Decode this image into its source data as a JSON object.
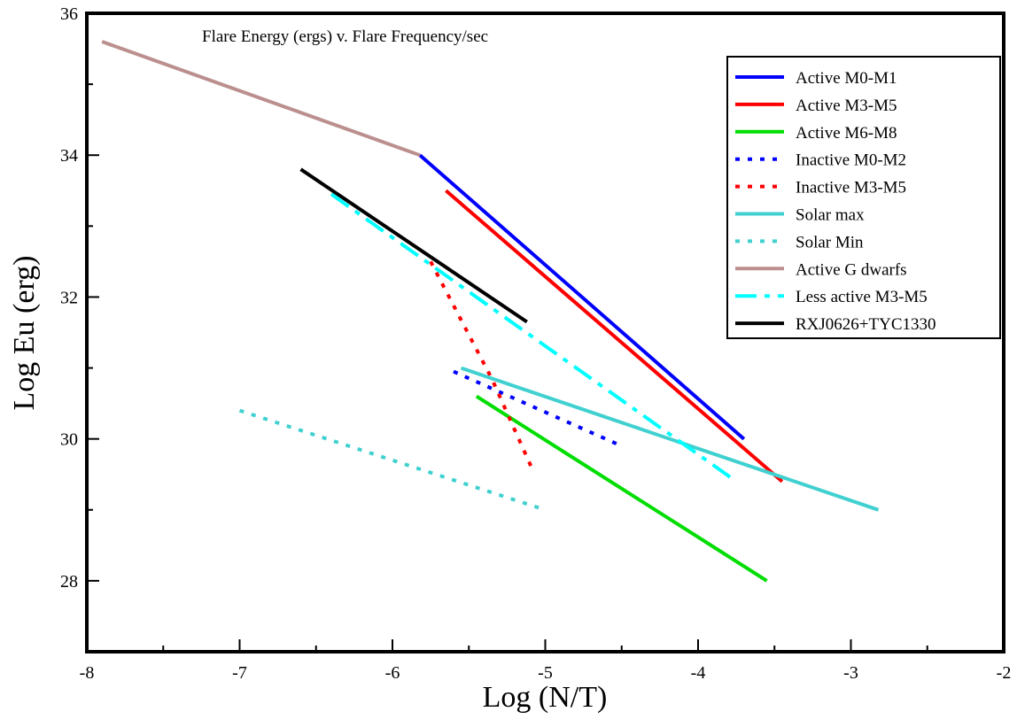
{
  "chart_data": {
    "type": "line",
    "title": "Flare Energy (ergs) v. Flare Frequency/sec",
    "xlabel": "Log (N/T)",
    "ylabel": "Log Eu (erg)",
    "xlim": [
      -8,
      -2
    ],
    "ylim": [
      27,
      36
    ],
    "xticks": [
      -8,
      -7,
      -6,
      -5,
      -4,
      -3,
      -2
    ],
    "yticks": [
      28,
      30,
      32,
      34,
      36
    ],
    "xtick_labels": [
      "-8",
      "-7",
      "-6",
      "-5",
      "-4",
      "-3",
      "-2"
    ],
    "ytick_labels": [
      "28",
      "30",
      "32",
      "34",
      "36"
    ],
    "grid": false,
    "legend_position": "top-right",
    "series": [
      {
        "name": "Active M0-M1",
        "color": "#0000ff",
        "dash": "solid",
        "x": [
          -5.82,
          -3.7
        ],
        "y": [
          34.0,
          30.0
        ]
      },
      {
        "name": "Active M3-M5",
        "color": "#ff0000",
        "dash": "solid",
        "x": [
          -5.65,
          -3.45
        ],
        "y": [
          33.5,
          29.4
        ]
      },
      {
        "name": "Active M6-M8",
        "color": "#00dd00",
        "dash": "solid",
        "x": [
          -5.45,
          -3.55
        ],
        "y": [
          30.6,
          28.0
        ]
      },
      {
        "name": "Inactive M0-M2",
        "color": "#0000ff",
        "dash": "dot",
        "x": [
          -5.6,
          -4.5
        ],
        "y": [
          30.95,
          29.9
        ]
      },
      {
        "name": "Inactive M3-M5",
        "color": "#ff0000",
        "dash": "dot",
        "x": [
          -5.75,
          -5.35,
          -5.08
        ],
        "y": [
          32.5,
          30.85,
          29.55
        ]
      },
      {
        "name": "Solar max",
        "color": "#40d0d0",
        "dash": "solid",
        "x": [
          -5.55,
          -2.82
        ],
        "y": [
          31.0,
          29.0
        ]
      },
      {
        "name": "Solar Min",
        "color": "#40d0d0",
        "dash": "dot",
        "x": [
          -7.0,
          -5.0
        ],
        "y": [
          30.4,
          29.0
        ]
      },
      {
        "name": "Active G dwarfs",
        "color": "#bc8f8f",
        "dash": "solid",
        "x": [
          -7.9,
          -5.82
        ],
        "y": [
          35.6,
          34.0
        ]
      },
      {
        "name": "Less active M3-M5",
        "color": "#00ffff",
        "dash": "dashdot",
        "x": [
          -6.4,
          -3.75
        ],
        "y": [
          33.45,
          29.4
        ]
      },
      {
        "name": "RXJ0626+TYC1330",
        "color": "#000000",
        "dash": "solid",
        "x": [
          -6.6,
          -5.12
        ],
        "y": [
          33.8,
          31.65
        ]
      }
    ]
  }
}
